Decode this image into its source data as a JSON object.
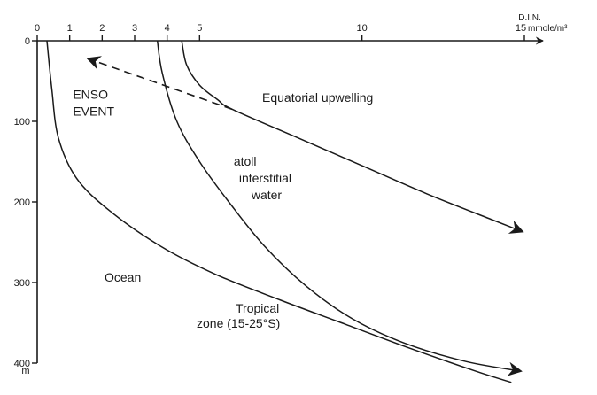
{
  "chart_data": {
    "type": "line",
    "x_axis": {
      "position": "top",
      "range": [
        0,
        15
      ],
      "tick_values": [
        0,
        1,
        2,
        3,
        4,
        5,
        10,
        15
      ],
      "tick_labels": [
        "0",
        "1",
        "2",
        "3",
        "4",
        "5",
        "10",
        "15"
      ],
      "unit_line1": "D.I.N.",
      "unit_line2": "mmole/m³"
    },
    "y_axis": {
      "range": [
        0,
        400
      ],
      "inverted": true,
      "tick_values": [
        0,
        100,
        200,
        300,
        400
      ],
      "tick_labels": [
        "0",
        "100",
        "200",
        "300",
        "400"
      ],
      "unit": "m"
    },
    "grid": false,
    "series": [
      {
        "name": "Ocean",
        "label_lines": [
          "Ocean"
        ],
        "arrow_end": false,
        "points": [
          [
            0.3,
            0
          ],
          [
            0.45,
            60
          ],
          [
            0.65,
            120
          ],
          [
            1.2,
            170
          ],
          [
            2.2,
            210
          ],
          [
            3.8,
            255
          ],
          [
            5.5,
            290
          ],
          [
            7.5,
            322
          ],
          [
            9.5,
            352
          ],
          [
            11.5,
            382
          ],
          [
            13.5,
            410
          ],
          [
            14.6,
            424
          ]
        ]
      },
      {
        "name": "Tropical zone (15-25°S)",
        "label_lines": [
          "Tropical",
          "zone (15-25°S)"
        ],
        "arrow_end": true,
        "points": [
          [
            3.7,
            0
          ],
          [
            3.85,
            40
          ],
          [
            4.3,
            100
          ],
          [
            5.0,
            150
          ],
          [
            5.9,
            200
          ],
          [
            7.0,
            255
          ],
          [
            8.3,
            305
          ],
          [
            9.7,
            345
          ],
          [
            11.3,
            375
          ],
          [
            13.2,
            398
          ],
          [
            14.9,
            410
          ]
        ]
      },
      {
        "name": "Equatorial upwelling",
        "label_lines": [
          "Equatorial  upwelling"
        ],
        "arrow_end": true,
        "points": [
          [
            4.45,
            0
          ],
          [
            4.6,
            30
          ],
          [
            5.0,
            55
          ],
          [
            5.55,
            73
          ],
          [
            6.0,
            85
          ],
          [
            8.0,
            120
          ],
          [
            10.0,
            155
          ],
          [
            12.0,
            190
          ],
          [
            14.0,
            222
          ],
          [
            14.95,
            237
          ]
        ]
      }
    ],
    "annotations": [
      {
        "text_lines": [
          "atoll",
          "interstitial",
          "water"
        ],
        "x": 6.05,
        "y": 155
      },
      {
        "text_lines": [
          "ENSO",
          "EVENT"
        ],
        "x": 1.1,
        "y": 72
      }
    ],
    "enso_arrow": {
      "from": [
        6.0,
        85
      ],
      "to": [
        1.55,
        22
      ]
    }
  }
}
